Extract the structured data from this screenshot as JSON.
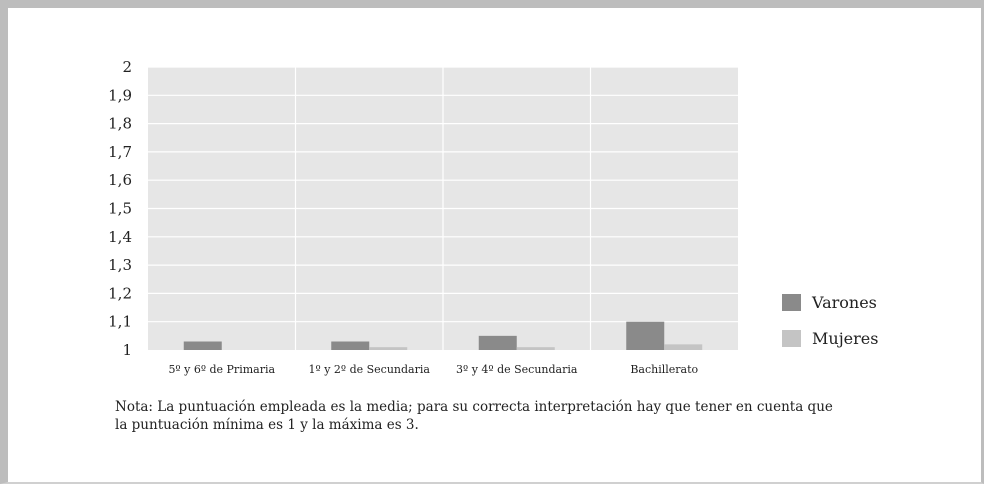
{
  "chart_data": {
    "type": "bar",
    "categories": [
      "5º y 6º de Primaria",
      "1º y 2º de Secundaria",
      "3º y 4º de Secundaria",
      "Bachillerato"
    ],
    "series": [
      {
        "name": "Varones",
        "values": [
          1.03,
          1.03,
          1.05,
          1.1
        ],
        "color": "#8a8a8a"
      },
      {
        "name": "Mujeres",
        "values": [
          1.0,
          1.01,
          1.01,
          1.02
        ],
        "color": "#c4c4c4"
      }
    ],
    "y_ticks": [
      "1",
      "1,1",
      "1,2",
      "1,3",
      "1,4",
      "1,5",
      "1,6",
      "1,7",
      "1,8",
      "1,9",
      "2"
    ],
    "ylim": [
      1,
      2
    ],
    "grid": true,
    "legend_position": "right",
    "plot_background": "#e6e6e6"
  },
  "note": {
    "line1": "Nota: La puntuación empleada es la media; para su correcta interpretación hay que tener en cuenta que",
    "line2": "la puntuación mínima es 1 y la máxima es 3."
  }
}
